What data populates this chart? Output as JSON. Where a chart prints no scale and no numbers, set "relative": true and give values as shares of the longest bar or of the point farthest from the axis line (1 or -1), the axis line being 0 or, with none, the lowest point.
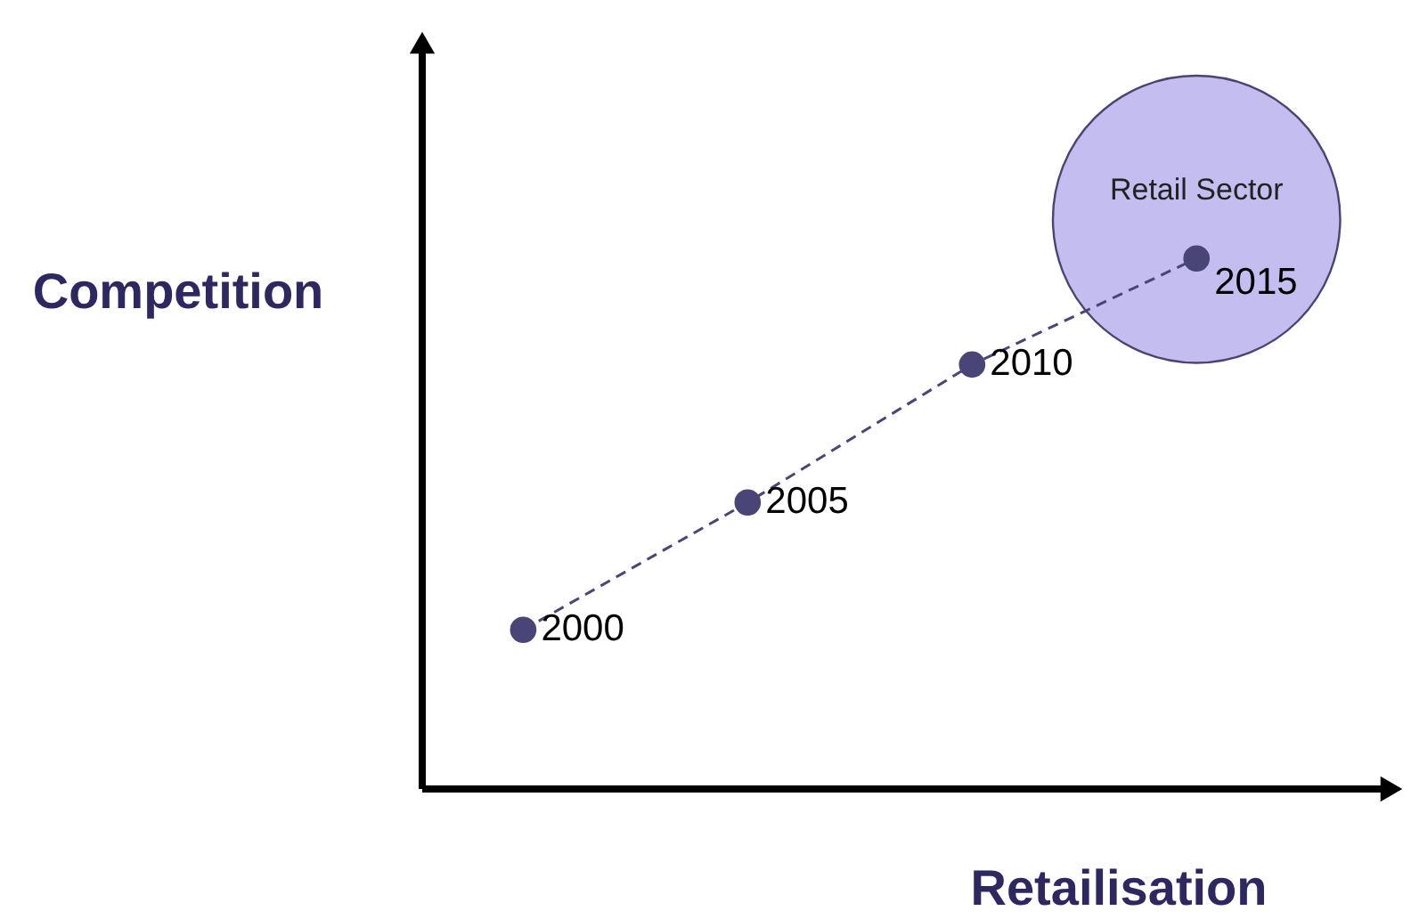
{
  "chart_data": {
    "type": "line",
    "relative": true,
    "xlabel": "Retailisation",
    "ylabel": "Competition",
    "categories": [
      null,
      null,
      null,
      null
    ],
    "annotations": [
      "Retail Sector",
      "2000",
      "2005",
      "2010",
      "2015"
    ],
    "series": [
      {
        "values": [
          0.3,
          0.54,
          0.8,
          1.0
        ],
        "color": "#4a4577",
        "line_style": "dashed",
        "marker": "circle"
      }
    ]
  }
}
